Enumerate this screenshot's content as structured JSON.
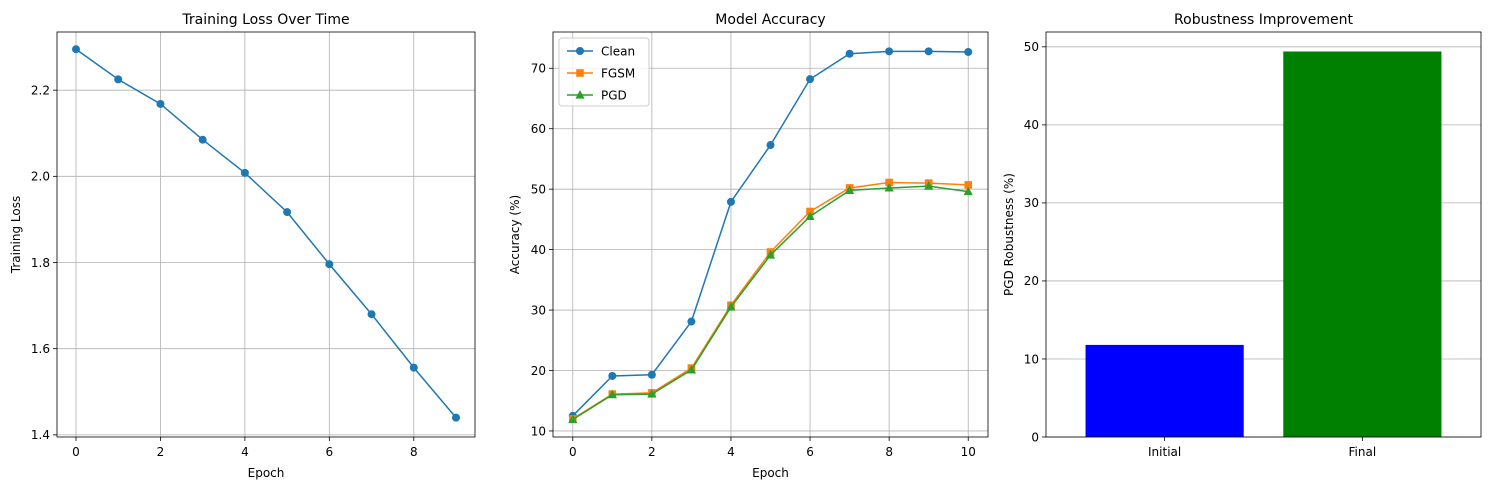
{
  "chart_data": [
    {
      "type": "line",
      "title": "Training Loss Over Time",
      "xlabel": "Epoch",
      "ylabel": "Training Loss",
      "xlim": [
        -0.45,
        9.45
      ],
      "ylim": [
        1.395,
        2.335
      ],
      "xticks": [
        0,
        2,
        4,
        6,
        8
      ],
      "yticks": [
        1.4,
        1.6,
        1.8,
        2.0,
        2.2
      ],
      "ytick_labels": [
        "1.4",
        "1.6",
        "1.8",
        "2.0",
        "2.2"
      ],
      "grid": true,
      "series": [
        {
          "color": "#1f77b4",
          "marker": "circle",
          "x": [
            0,
            1,
            2,
            3,
            4,
            5,
            6,
            7,
            8,
            9
          ],
          "y": [
            2.295,
            2.225,
            2.168,
            2.085,
            2.008,
            1.917,
            1.796,
            1.68,
            1.556,
            1.44
          ]
        }
      ]
    },
    {
      "type": "line",
      "title": "Model Accuracy",
      "xlabel": "Epoch",
      "ylabel": "Accuracy (%)",
      "xlim": [
        -0.5,
        10.5
      ],
      "ylim": [
        9.0,
        76.0
      ],
      "xticks": [
        0,
        2,
        4,
        6,
        8,
        10
      ],
      "yticks": [
        10,
        20,
        30,
        40,
        50,
        60,
        70
      ],
      "grid": true,
      "legend": "top-left",
      "series": [
        {
          "name": "Clean",
          "color": "#1f77b4",
          "marker": "circle",
          "x": [
            0,
            1,
            2,
            3,
            4,
            5,
            6,
            7,
            8,
            9,
            10
          ],
          "y": [
            12.5,
            19.1,
            19.3,
            28.1,
            47.9,
            57.3,
            68.2,
            72.4,
            72.8,
            72.8,
            72.7
          ]
        },
        {
          "name": "FGSM",
          "color": "#ff7f0e",
          "marker": "square",
          "x": [
            0,
            1,
            2,
            3,
            4,
            5,
            6,
            7,
            8,
            9,
            10
          ],
          "y": [
            12.0,
            16.1,
            16.3,
            20.4,
            30.8,
            39.6,
            46.3,
            50.2,
            51.1,
            51.0,
            50.7
          ]
        },
        {
          "name": "PGD",
          "color": "#2ca02c",
          "marker": "triangle",
          "x": [
            0,
            1,
            2,
            3,
            4,
            5,
            6,
            7,
            8,
            9,
            10
          ],
          "y": [
            11.9,
            16.0,
            16.1,
            20.1,
            30.5,
            39.1,
            45.5,
            49.8,
            50.2,
            50.5,
            49.6
          ]
        }
      ]
    },
    {
      "type": "bar",
      "title": "Robustness Improvement",
      "xlabel": "",
      "ylabel": "PGD Robustness (%)",
      "categories": [
        "Initial",
        "Final"
      ],
      "values": [
        11.8,
        49.4
      ],
      "colors": [
        "#0000ff",
        "#008000"
      ],
      "ylim": [
        0,
        51.9
      ],
      "yticks": [
        0,
        10,
        20,
        30,
        40,
        50
      ],
      "grid": "y"
    }
  ]
}
